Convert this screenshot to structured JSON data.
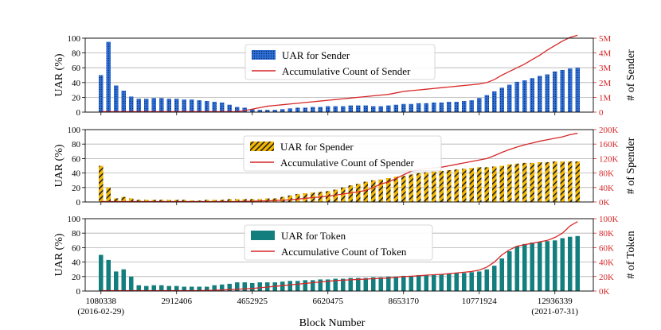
{
  "chart_data": {
    "type": "bar",
    "xlabel": "Block Number",
    "x_ticks": [
      {
        "index": 0,
        "label": "1080338",
        "sublabel": "(2016-02-29)"
      },
      {
        "index": 10,
        "label": "2912406",
        "sublabel": ""
      },
      {
        "index": 20,
        "label": "4652925",
        "sublabel": ""
      },
      {
        "index": 30,
        "label": "6620475",
        "sublabel": ""
      },
      {
        "index": 40,
        "label": "8653170",
        "sublabel": ""
      },
      {
        "index": 50,
        "label": "10771924",
        "sublabel": ""
      },
      {
        "index": 60,
        "label": "12936339",
        "sublabel": "(2021-07-31)"
      }
    ],
    "panels": [
      {
        "id": "sender",
        "ylabel": "UAR (%)",
        "y2label": "# of Sender",
        "ylim": [
          0,
          100
        ],
        "yticks": [
          "0",
          "20",
          "40",
          "60",
          "80",
          "100"
        ],
        "y2lim": [
          0,
          5000000
        ],
        "y2ticks": [
          "0",
          "1M",
          "2M",
          "3M",
          "4M",
          "5M"
        ],
        "bar_color": "#2e6fd6",
        "line_color": "#d62728",
        "legend": {
          "bar": "UAR for Sender",
          "line": "Accumulative Count of Sender"
        },
        "values": [
          50,
          95,
          36,
          29,
          21,
          18,
          18,
          19,
          19,
          18,
          18,
          17,
          17,
          16,
          15,
          14,
          13,
          10,
          7,
          6,
          4,
          3,
          3,
          3,
          4,
          5,
          6,
          6,
          7,
          7,
          8,
          8,
          8,
          9,
          9,
          9,
          8,
          8,
          9,
          10,
          11,
          11,
          12,
          12,
          13,
          13,
          14,
          14,
          15,
          16,
          19,
          23,
          28,
          33,
          37,
          41,
          43,
          46,
          49,
          51,
          55,
          57,
          59,
          60
        ],
        "cumulative": [
          30000,
          30000,
          30000,
          30000,
          30000,
          30000,
          30000,
          30000,
          30000,
          30000,
          30000,
          30000,
          30000,
          30000,
          30000,
          30000,
          30000,
          30000,
          40000,
          100000,
          200000,
          300000,
          400000,
          450000,
          500000,
          550000,
          600000,
          650000,
          700000,
          750000,
          800000,
          850000,
          900000,
          950000,
          1000000,
          1050000,
          1100000,
          1150000,
          1200000,
          1300000,
          1400000,
          1450000,
          1500000,
          1550000,
          1600000,
          1650000,
          1700000,
          1750000,
          1800000,
          1850000,
          1900000,
          2000000,
          2200000,
          2500000,
          2750000,
          3000000,
          3250000,
          3550000,
          3850000,
          4200000,
          4500000,
          4800000,
          5050000,
          5200000
        ]
      },
      {
        "id": "spender",
        "ylabel": "UAR (%)",
        "y2label": "# of Spender",
        "ylim": [
          0,
          100
        ],
        "yticks": [
          "0",
          "20",
          "40",
          "60",
          "80",
          "100"
        ],
        "y2lim": [
          0,
          200000
        ],
        "y2ticks": [
          "0K",
          "40K",
          "80K",
          "120K",
          "160K",
          "200K"
        ],
        "bar_color": "#f5b800",
        "line_color": "#d62728",
        "legend": {
          "bar": "UAR for Spender",
          "line": "Accumulative Count of Spender"
        },
        "values": [
          50,
          20,
          5,
          7,
          5,
          3,
          3,
          3,
          3,
          3,
          3,
          3,
          2,
          2,
          3,
          3,
          3,
          4,
          4,
          4,
          4,
          4,
          5,
          5,
          7,
          9,
          11,
          12,
          13,
          14,
          15,
          17,
          20,
          23,
          25,
          28,
          30,
          31,
          33,
          35,
          36,
          38,
          40,
          41,
          42,
          43,
          44,
          45,
          46,
          47,
          48,
          48,
          49,
          50,
          52,
          53,
          54,
          54,
          55,
          55,
          56,
          56,
          56,
          56
        ],
        "cumulative": [
          1000,
          1000,
          1000,
          1000,
          1000,
          1000,
          1000,
          1000,
          1000,
          1000,
          1000,
          1000,
          1000,
          1000,
          1000,
          1000,
          1000,
          1000,
          1000,
          2000,
          2000,
          3000,
          3000,
          4000,
          5000,
          6000,
          8000,
          10000,
          12000,
          14000,
          16000,
          19000,
          22000,
          25000,
          28000,
          32000,
          40000,
          50000,
          55000,
          65000,
          75000,
          85000,
          90000,
          92000,
          94000,
          96000,
          100000,
          104000,
          108000,
          112000,
          116000,
          120000,
          128000,
          137000,
          145000,
          152000,
          158000,
          163000,
          168000,
          172000,
          176000,
          180000,
          186000,
          190000
        ]
      },
      {
        "id": "token",
        "ylabel": "UAR (%)",
        "y2label": "# of Token",
        "ylim": [
          0,
          100
        ],
        "yticks": [
          "0",
          "20",
          "40",
          "60",
          "80",
          "100"
        ],
        "y2lim": [
          0,
          100000
        ],
        "y2ticks": [
          "0K",
          "20K",
          "40K",
          "60K",
          "80K",
          "100K"
        ],
        "bar_color": "#127e7e",
        "line_color": "#d62728",
        "legend": {
          "bar": "UAR for Token",
          "line": "Accumulative Count of Token"
        },
        "values": [
          50,
          43,
          27,
          30,
          20,
          8,
          7,
          8,
          8,
          7,
          7,
          6,
          6,
          6,
          6,
          8,
          9,
          10,
          12,
          12,
          11,
          12,
          12,
          12,
          13,
          14,
          14,
          15,
          15,
          16,
          16,
          17,
          17,
          18,
          18,
          18,
          19,
          19,
          20,
          20,
          21,
          21,
          22,
          22,
          23,
          23,
          24,
          25,
          25,
          26,
          27,
          30,
          35,
          45,
          55,
          62,
          65,
          67,
          68,
          69,
          70,
          73,
          75,
          76
        ],
        "cumulative": [
          500,
          500,
          500,
          500,
          500,
          500,
          500,
          500,
          500,
          500,
          500,
          500,
          500,
          500,
          1000,
          1000,
          1500,
          2000,
          2500,
          3000,
          3500,
          4500,
          5500,
          6500,
          7500,
          8500,
          9500,
          10500,
          11500,
          12500,
          13500,
          14500,
          15000,
          15500,
          16000,
          16500,
          17000,
          17500,
          18000,
          19000,
          20000,
          20500,
          21000,
          22000,
          22500,
          23000,
          24000,
          25000,
          26000,
          27000,
          29000,
          33000,
          40000,
          50000,
          57000,
          62000,
          64000,
          66000,
          68000,
          70000,
          74000,
          80000,
          90000,
          96000
        ]
      }
    ]
  }
}
